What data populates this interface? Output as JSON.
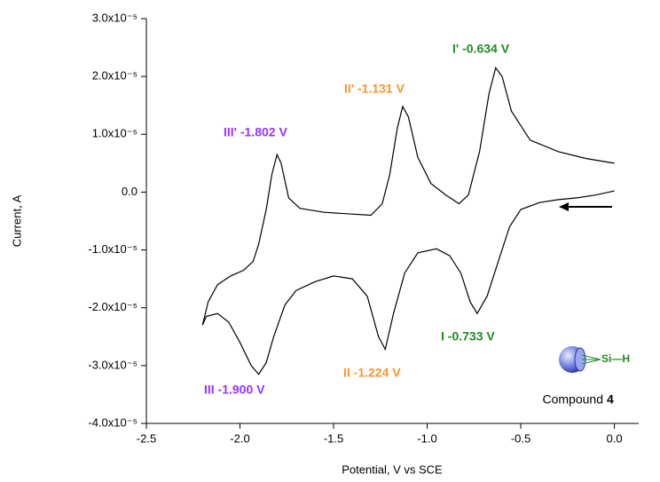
{
  "chart_data": {
    "type": "line",
    "xlabel": "Potential, V vs SCE",
    "ylabel": "Current, A",
    "xlim": [
      -2.5,
      0.13
    ],
    "ylim": [
      -4e-05,
      3e-05
    ],
    "xticks": [
      {
        "value": -2.5,
        "label": "-2.5"
      },
      {
        "value": -2,
        "label": "-2.0"
      },
      {
        "value": -1.5,
        "label": "-1.5"
      },
      {
        "value": -1,
        "label": "-1.0"
      },
      {
        "value": -0.5,
        "label": "-0.5"
      },
      {
        "value": 0,
        "label": "0.0"
      }
    ],
    "yticks": [
      {
        "value": 3e-05,
        "label": "3.0x10⁻⁵"
      },
      {
        "value": 2e-05,
        "label": "2.0x10⁻⁵"
      },
      {
        "value": 1e-05,
        "label": "1.0x10⁻⁵"
      },
      {
        "value": 0,
        "label": "0.0"
      },
      {
        "value": -1e-05,
        "label": "-1.0x10⁻⁵"
      },
      {
        "value": -2e-05,
        "label": "-2.0x10⁻⁵"
      },
      {
        "value": -3e-05,
        "label": "-3.0x10⁻⁵"
      },
      {
        "value": -4e-05,
        "label": "-4.0x10⁻⁵"
      }
    ],
    "series": [
      {
        "color": "#000000",
        "x": [
          0.0,
          -0.1,
          -0.2,
          -0.3,
          -0.4,
          -0.5,
          -0.56,
          -0.62,
          -0.68,
          -0.733,
          -0.77,
          -0.82,
          -0.88,
          -0.95,
          -1.05,
          -1.12,
          -1.18,
          -1.224,
          -1.26,
          -1.32,
          -1.4,
          -1.5,
          -1.6,
          -1.7,
          -1.76,
          -1.82,
          -1.86,
          -1.9,
          -1.94,
          -2.0,
          -2.06,
          -2.12,
          -2.18,
          -2.2,
          -2.17,
          -2.12,
          -2.05,
          -1.98,
          -1.93,
          -1.9,
          -1.86,
          -1.83,
          -1.802,
          -1.78,
          -1.74,
          -1.68,
          -1.55,
          -1.4,
          -1.3,
          -1.24,
          -1.2,
          -1.16,
          -1.131,
          -1.1,
          -1.05,
          -0.98,
          -0.9,
          -0.83,
          -0.78,
          -0.72,
          -0.67,
          -0.634,
          -0.6,
          -0.55,
          -0.45,
          -0.3,
          -0.15,
          0.0
        ],
        "values": [
          2e-07,
          -5e-07,
          -1e-06,
          -1.3e-06,
          -1.8e-06,
          -3e-06,
          -6e-06,
          -1.2e-05,
          -1.8e-05,
          -2.1e-05,
          -1.9e-05,
          -1.4e-05,
          -1.1e-05,
          -9.8e-06,
          -1.05e-05,
          -1.4e-05,
          -2.1e-05,
          -2.72e-05,
          -2.5e-05,
          -1.8e-05,
          -1.5e-05,
          -1.45e-05,
          -1.55e-05,
          -1.7e-05,
          -1.95e-05,
          -2.5e-05,
          -2.95e-05,
          -3.15e-05,
          -3e-05,
          -2.6e-05,
          -2.25e-05,
          -2.1e-05,
          -2.15e-05,
          -2.3e-05,
          -1.9e-05,
          -1.6e-05,
          -1.45e-05,
          -1.35e-05,
          -1.2e-05,
          -9e-06,
          -3e-06,
          3e-06,
          6.5e-06,
          5e-06,
          -1e-06,
          -2.8e-06,
          -3.5e-06,
          -3.8e-06,
          -4e-06,
          -2e-06,
          3e-06,
          1.1e-05,
          1.48e-05,
          1.3e-05,
          6e-06,
          1.5e-06,
          -5e-07,
          -2e-06,
          -5e-07,
          7e-06,
          1.7e-05,
          2.15e-05,
          2e-05,
          1.4e-05,
          9e-06,
          7e-06,
          5.8e-06,
          5e-06
        ]
      }
    ],
    "annotations": [
      {
        "text": "I' -0.634 V",
        "color": "#228B22"
      },
      {
        "text": "II' -1.131 V",
        "color": "#F7962F"
      },
      {
        "text": "III' -1.802 V",
        "color": "#9933FF"
      },
      {
        "text": "I -0.733 V",
        "color": "#228B22"
      },
      {
        "text": "II -1.224 V",
        "color": "#F7962F"
      },
      {
        "text": "III -1.900 V",
        "color": "#9933FF"
      }
    ],
    "compound": {
      "group": "Si—H",
      "label": "Compound",
      "number": "4"
    }
  }
}
